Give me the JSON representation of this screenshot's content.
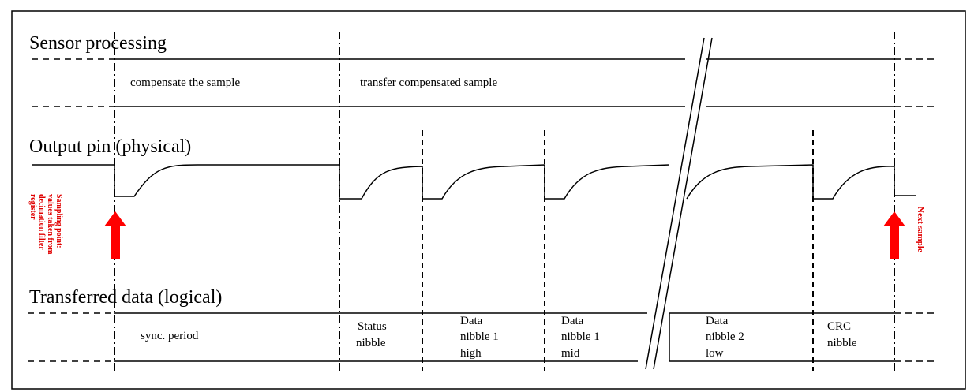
{
  "sections": {
    "sensor_processing": "Sensor processing",
    "output_pin": "Output pin (physical)",
    "transferred_data": "Transferred data (logical)"
  },
  "processing": {
    "compensate": "compensate the sample",
    "transfer": "transfer compensated sample"
  },
  "annotations": {
    "sampling_point": [
      "Sampling point:",
      "values taken from",
      "decimation filter",
      "register"
    ],
    "next_sample": "Next sample"
  },
  "data_cells": {
    "sync": "sync. period",
    "status": [
      "Status",
      "nibble"
    ],
    "data1_high": [
      "Data",
      "nibble 1",
      "high"
    ],
    "data1_mid": [
      "Data",
      "nibble 1",
      "mid"
    ],
    "data2_low": [
      "Data",
      "nibble 2",
      "low"
    ],
    "crc": [
      "CRC",
      "nibble"
    ]
  },
  "colors": {
    "line": "#000000",
    "arrow": "#ff0000",
    "annotation": "#e00000"
  }
}
